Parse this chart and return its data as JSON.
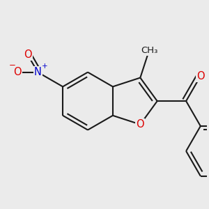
{
  "bg_color": "#ebebeb",
  "bond_color": "#1a1a1a",
  "bond_width": 1.5,
  "atom_colors": {
    "O": "#dd0000",
    "N": "#0000cc",
    "C": "#1a1a1a"
  },
  "font_size_atom": 10.5,
  "font_size_methyl": 9.5,
  "font_size_charge": 7.5
}
